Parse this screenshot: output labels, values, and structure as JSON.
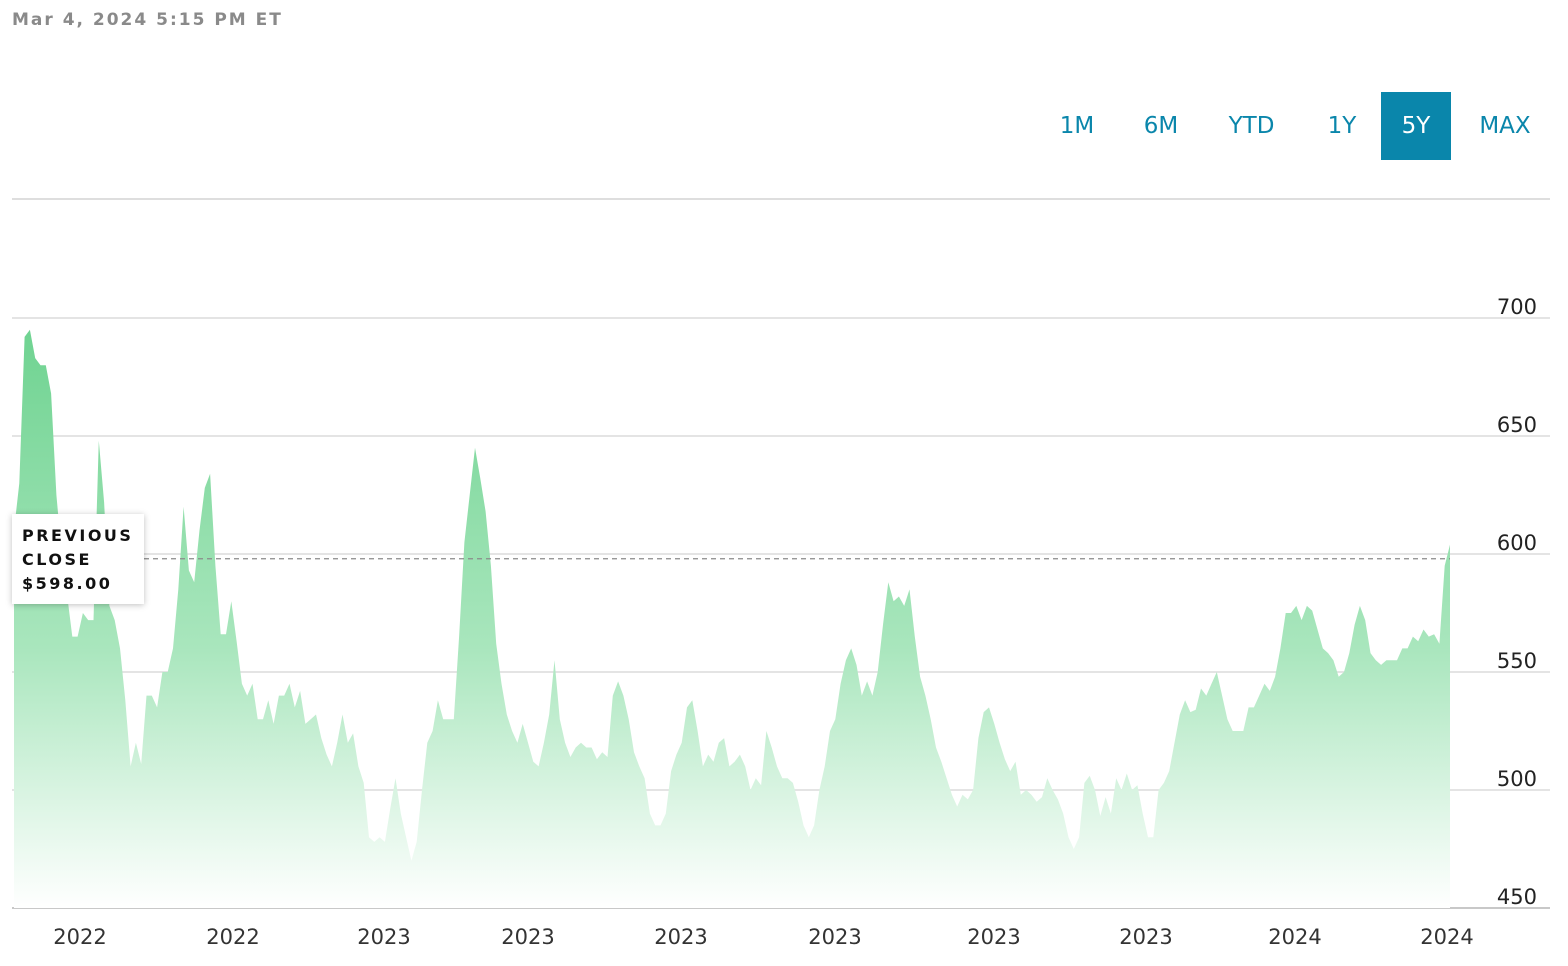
{
  "header": {
    "timestamp": "Mar 4, 2024 5:15 PM ET"
  },
  "ranges": [
    {
      "label": "1M",
      "active": false
    },
    {
      "label": "6M",
      "active": false
    },
    {
      "label": "YTD",
      "active": false
    },
    {
      "label": "1Y",
      "active": false
    },
    {
      "label": "5Y",
      "active": true
    },
    {
      "label": "MAX",
      "active": false
    }
  ],
  "previous_close": {
    "line1": "PREVIOUS",
    "line2": "CLOSE",
    "value": "$598.00"
  },
  "colors": {
    "accent": "#0a86ab",
    "area_top": "#6fd391",
    "area_bottom": "#ffffff",
    "grid": "#dcdcdc"
  },
  "chart_data": {
    "type": "area",
    "ylim": [
      450,
      715
    ],
    "yticks": [
      700,
      650,
      600,
      550,
      500,
      450
    ],
    "xticks": [
      "2022",
      "2022",
      "2023",
      "2023",
      "2023",
      "2023",
      "2023",
      "2023",
      "2024",
      "2024"
    ],
    "reference_line": 598,
    "grid": true,
    "series": [
      {
        "values": [
          610,
          630,
          692,
          695,
          683,
          680,
          680,
          668,
          625,
          600,
          583,
          565,
          565,
          575,
          572,
          572,
          648,
          622,
          578,
          572,
          560,
          538,
          510,
          520,
          511,
          540,
          540,
          535,
          550,
          550,
          560,
          585,
          620,
          593,
          588,
          610,
          628,
          634,
          595,
          566,
          566,
          580,
          563,
          545,
          540,
          545,
          530,
          530,
          538,
          528,
          540,
          540,
          545,
          535,
          542,
          528,
          530,
          532,
          522,
          515,
          510,
          520,
          532,
          520,
          524,
          510,
          503,
          480,
          478,
          480,
          478,
          492,
          505,
          490,
          480,
          470,
          478,
          500,
          520,
          525,
          538,
          530,
          530,
          530,
          565,
          605,
          625,
          645,
          632,
          618,
          595,
          562,
          545,
          532,
          525,
          520,
          528,
          520,
          512,
          510,
          520,
          532,
          555,
          530,
          520,
          514,
          518,
          520,
          518,
          518,
          513,
          516,
          514,
          540,
          546,
          540,
          530,
          516,
          510,
          505,
          490,
          485,
          485,
          490,
          508,
          515,
          520,
          535,
          538,
          525,
          510,
          515,
          512,
          520,
          522,
          510,
          512,
          515,
          510,
          500,
          505,
          502,
          525,
          518,
          510,
          505,
          505,
          503,
          495,
          485,
          480,
          485,
          500,
          510,
          525,
          530,
          545,
          555,
          560,
          553,
          540,
          546,
          540,
          550,
          570,
          588,
          580,
          582,
          578,
          585,
          565,
          548,
          540,
          530,
          518,
          512,
          505,
          498,
          493,
          498,
          496,
          500,
          522,
          533,
          535,
          528,
          520,
          513,
          508,
          512,
          498,
          500,
          498,
          495,
          497,
          505,
          500,
          496,
          490,
          480,
          475,
          480,
          503,
          506,
          500,
          489,
          497,
          490,
          505,
          500,
          507,
          500,
          502,
          490,
          480,
          480,
          500,
          503,
          508,
          520,
          532,
          538,
          533,
          534,
          543,
          540,
          545,
          550,
          540,
          530,
          525,
          525,
          525,
          535,
          535,
          540,
          545,
          542,
          548,
          560,
          575,
          575,
          578,
          572,
          578,
          576,
          568,
          560,
          558,
          555,
          548,
          550,
          558,
          570,
          578,
          572,
          558,
          555,
          553,
          555,
          555,
          555,
          560,
          560,
          565,
          563,
          568,
          565,
          566,
          562,
          595,
          604
        ]
      }
    ]
  }
}
